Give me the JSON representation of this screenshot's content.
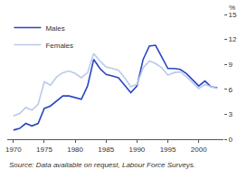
{
  "chart_data": {
    "type": "line",
    "y_label": "%",
    "caption": "Source: Data available on request, Labour Force Surveys.",
    "x": [
      1970,
      1971,
      1972,
      1973,
      1974,
      1975,
      1976,
      1977,
      1978,
      1979,
      1980,
      1981,
      1982,
      1983,
      1984,
      1985,
      1986,
      1987,
      1988,
      1989,
      1990,
      1991,
      1992,
      1993,
      1994,
      1995,
      1996,
      1997,
      1998,
      1999,
      2000,
      2001,
      2002,
      2003
    ],
    "series": [
      {
        "name": "Males",
        "color": "#2746c4",
        "values": [
          1.1,
          1.3,
          1.9,
          1.6,
          1.9,
          3.7,
          4.0,
          4.6,
          5.2,
          5.2,
          5.0,
          4.8,
          6.4,
          9.6,
          8.5,
          7.8,
          7.6,
          7.4,
          6.5,
          5.6,
          6.4,
          9.6,
          11.2,
          11.3,
          9.9,
          8.5,
          8.5,
          8.4,
          7.9,
          7.1,
          6.4,
          7.0,
          6.3,
          6.2
        ]
      },
      {
        "name": "Females",
        "color": "#b9c8ec",
        "values": [
          2.8,
          3.1,
          3.8,
          3.5,
          4.2,
          6.9,
          6.5,
          7.5,
          8.0,
          8.2,
          7.9,
          7.4,
          8.0,
          10.3,
          9.4,
          8.7,
          8.5,
          8.3,
          7.4,
          6.3,
          6.6,
          8.6,
          9.4,
          9.1,
          8.6,
          7.7,
          8.0,
          8.1,
          7.5,
          6.8,
          6.1,
          6.6,
          6.3,
          6.1
        ]
      }
    ],
    "xlim": [
      1969,
      2004
    ],
    "xticks": [
      1970,
      1975,
      1980,
      1985,
      1990,
      1995,
      2000
    ],
    "ylim": [
      0,
      15
    ],
    "yticks": [
      0,
      3,
      6,
      9,
      12,
      15
    ],
    "grid": false,
    "legend": "upper left"
  }
}
